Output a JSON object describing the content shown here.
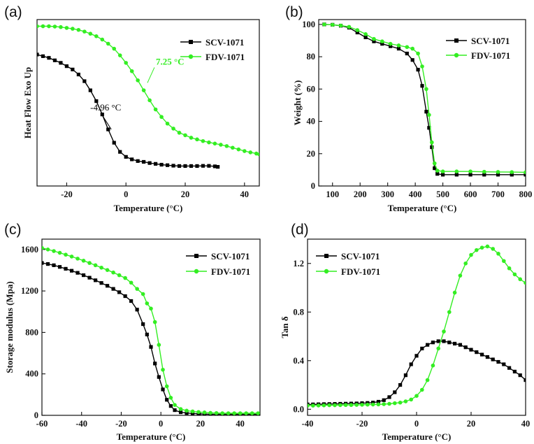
{
  "colors": {
    "scv": "#000000",
    "fdv": "#33ee22"
  },
  "series_names": {
    "scv": "SCV-1071",
    "fdv": "FDV-1071"
  },
  "chart_data": [
    {
      "panel": "(a)",
      "type": "line",
      "title": "",
      "xlabel": "Temperature (°C)",
      "ylabel": "Heat Flow Exo Up",
      "xlim": [
        -30,
        45
      ],
      "ylim": [
        0,
        10
      ],
      "xticks": [
        -20,
        0,
        20,
        40
      ],
      "yticks": [],
      "grid": false,
      "legend": "top-right",
      "series": [
        {
          "name": "SCV-1071",
          "marker": "square",
          "x": [
            -30,
            -28,
            -26,
            -24,
            -22,
            -20,
            -18,
            -16,
            -14,
            -12,
            -10,
            -8,
            -6,
            -4,
            -2,
            0,
            2,
            4,
            6,
            8,
            10,
            12,
            14,
            16,
            18,
            20,
            22,
            24,
            26,
            28,
            30,
            31
          ],
          "y": [
            7.9,
            7.8,
            7.7,
            7.55,
            7.4,
            7.2,
            7.0,
            6.7,
            6.3,
            5.75,
            5.1,
            4.3,
            3.4,
            2.6,
            2.05,
            1.75,
            1.6,
            1.5,
            1.45,
            1.38,
            1.33,
            1.28,
            1.25,
            1.22,
            1.2,
            1.2,
            1.2,
            1.2,
            1.21,
            1.21,
            1.18,
            1.15
          ]
        },
        {
          "name": "FDV-1071",
          "marker": "circle",
          "x": [
            -30,
            -28,
            -26,
            -24,
            -22,
            -20,
            -18,
            -16,
            -14,
            -12,
            -10,
            -8,
            -6,
            -4,
            -2,
            0,
            2,
            4,
            6,
            8,
            10,
            12,
            14,
            16,
            18,
            20,
            22,
            24,
            26,
            28,
            30,
            32,
            34,
            36,
            38,
            40,
            42,
            44,
            45
          ],
          "y": [
            9.6,
            9.6,
            9.6,
            9.58,
            9.55,
            9.5,
            9.45,
            9.38,
            9.28,
            9.15,
            9.0,
            8.8,
            8.55,
            8.25,
            7.85,
            7.4,
            6.9,
            6.35,
            5.75,
            5.15,
            4.6,
            4.15,
            3.75,
            3.45,
            3.2,
            3.05,
            2.9,
            2.8,
            2.7,
            2.62,
            2.55,
            2.48,
            2.4,
            2.3,
            2.2,
            2.1,
            2.02,
            1.95,
            1.9
          ]
        }
      ],
      "annotations": [
        {
          "text": "-4.96 °C",
          "x": -4.96,
          "y": 3.4,
          "color": "black"
        },
        {
          "text": "7.25 °C",
          "x": 7.25,
          "y": 6.2,
          "color": "green"
        }
      ]
    },
    {
      "panel": "(b)",
      "type": "line",
      "title": "",
      "xlabel": "Temperature (°C)",
      "ylabel": "Weight (%)",
      "xlim": [
        50,
        800
      ],
      "ylim": [
        0,
        103
      ],
      "xticks": [
        100,
        200,
        300,
        400,
        500,
        600,
        700,
        800
      ],
      "yticks": [
        0,
        20,
        40,
        60,
        80,
        100
      ],
      "grid": false,
      "legend": "top-right",
      "series": [
        {
          "name": "SCV-1071",
          "marker": "square",
          "x": [
            70,
            100,
            130,
            160,
            190,
            220,
            250,
            280,
            310,
            340,
            370,
            390,
            410,
            425,
            440,
            450,
            460,
            470,
            480,
            500,
            550,
            600,
            650,
            700,
            750,
            800
          ],
          "y": [
            100,
            99.8,
            99.2,
            98,
            95,
            92,
            89.5,
            88,
            86.5,
            85,
            82,
            78,
            72,
            62,
            46,
            36,
            24,
            11,
            7.5,
            7,
            7,
            7,
            7,
            7,
            7,
            7
          ]
        },
        {
          "name": "FDV-1071",
          "marker": "circle",
          "x": [
            70,
            100,
            130,
            160,
            190,
            220,
            250,
            280,
            310,
            340,
            370,
            390,
            410,
            425,
            440,
            450,
            460,
            470,
            480,
            500,
            550,
            600,
            650,
            700,
            750,
            800
          ],
          "y": [
            100,
            99.8,
            99.3,
            98.5,
            96.5,
            94,
            91,
            89.5,
            88,
            87,
            86,
            85,
            82,
            74,
            60,
            44,
            27,
            14,
            9.5,
            9,
            9,
            9,
            8.8,
            8.7,
            8.6,
            8.5
          ]
        }
      ]
    },
    {
      "panel": "(c)",
      "type": "line",
      "title": "",
      "xlabel": "Temperature (°C)",
      "ylabel": "Storage modulus (Mpa)",
      "xlim": [
        -60,
        50
      ],
      "ylim": [
        0,
        1700
      ],
      "xticks": [
        -60,
        -40,
        -20,
        0,
        20,
        40
      ],
      "yticks": [
        0,
        400,
        800,
        1200,
        1600
      ],
      "grid": false,
      "legend": "top-right",
      "series": [
        {
          "name": "SCV-1071",
          "marker": "square",
          "x": [
            -60,
            -57,
            -54,
            -51,
            -48,
            -45,
            -42,
            -39,
            -36,
            -33,
            -30,
            -27,
            -24,
            -21,
            -18,
            -15,
            -12,
            -9,
            -7,
            -5,
            -3,
            -1,
            1,
            3,
            5,
            7,
            10,
            13,
            16,
            19,
            22,
            25,
            28,
            31,
            34,
            37,
            40,
            43,
            46,
            49
          ],
          "y": [
            1470,
            1460,
            1448,
            1432,
            1414,
            1395,
            1375,
            1352,
            1328,
            1303,
            1277,
            1250,
            1220,
            1188,
            1150,
            1103,
            1020,
            880,
            780,
            660,
            500,
            370,
            250,
            150,
            90,
            50,
            30,
            22,
            18,
            15,
            12,
            10,
            10,
            10,
            10,
            10,
            10,
            10,
            10,
            10
          ]
        },
        {
          "name": "FDV-1071",
          "marker": "circle",
          "x": [
            -60,
            -57,
            -54,
            -51,
            -48,
            -45,
            -42,
            -39,
            -36,
            -33,
            -30,
            -27,
            -24,
            -21,
            -18,
            -15,
            -12,
            -9,
            -7,
            -5,
            -3,
            -1,
            1,
            3,
            5,
            7,
            10,
            13,
            16,
            19,
            22,
            25,
            28,
            31,
            34,
            37,
            40,
            43,
            46,
            49
          ],
          "y": [
            1615,
            1600,
            1585,
            1568,
            1550,
            1532,
            1512,
            1492,
            1470,
            1448,
            1425,
            1402,
            1378,
            1352,
            1325,
            1280,
            1220,
            1170,
            1080,
            1030,
            900,
            680,
            440,
            280,
            170,
            100,
            60,
            45,
            38,
            32,
            28,
            24,
            22,
            20,
            20,
            20,
            20,
            20,
            20,
            20
          ]
        }
      ]
    },
    {
      "panel": "(d)",
      "type": "line",
      "title": "",
      "xlabel": "Temperature (°C)",
      "ylabel": "Tan δ",
      "xlim": [
        -40,
        40
      ],
      "ylim": [
        -0.05,
        1.4
      ],
      "xticks": [
        -40,
        -20,
        0,
        20,
        40
      ],
      "yticks": [
        0.0,
        0.4,
        0.8,
        1.2
      ],
      "grid": false,
      "legend": "top-left",
      "series": [
        {
          "name": "SCV-1071",
          "marker": "square",
          "x": [
            -40,
            -38,
            -36,
            -34,
            -32,
            -30,
            -28,
            -26,
            -24,
            -22,
            -20,
            -18,
            -16,
            -14,
            -12,
            -10,
            -8,
            -6,
            -4,
            -2,
            0,
            2,
            4,
            6,
            8,
            10,
            12,
            14,
            16,
            18,
            20,
            22,
            24,
            26,
            28,
            30,
            32,
            34,
            36,
            38,
            40
          ],
          "y": [
            0.04,
            0.04,
            0.041,
            0.042,
            0.043,
            0.044,
            0.045,
            0.046,
            0.047,
            0.048,
            0.05,
            0.052,
            0.055,
            0.062,
            0.075,
            0.1,
            0.14,
            0.2,
            0.28,
            0.37,
            0.44,
            0.5,
            0.53,
            0.55,
            0.56,
            0.56,
            0.55,
            0.54,
            0.53,
            0.51,
            0.49,
            0.47,
            0.45,
            0.43,
            0.41,
            0.39,
            0.37,
            0.34,
            0.31,
            0.28,
            0.24
          ]
        },
        {
          "name": "FDV-1071",
          "marker": "circle",
          "x": [
            -40,
            -38,
            -36,
            -34,
            -32,
            -30,
            -28,
            -26,
            -24,
            -22,
            -20,
            -18,
            -16,
            -14,
            -12,
            -10,
            -8,
            -6,
            -4,
            -2,
            0,
            2,
            4,
            6,
            8,
            10,
            12,
            14,
            16,
            18,
            20,
            22,
            24,
            26,
            28,
            30,
            32,
            34,
            36,
            38,
            40
          ],
          "y": [
            0.03,
            0.03,
            0.031,
            0.032,
            0.033,
            0.033,
            0.034,
            0.035,
            0.035,
            0.036,
            0.037,
            0.038,
            0.039,
            0.04,
            0.042,
            0.045,
            0.05,
            0.055,
            0.065,
            0.08,
            0.11,
            0.16,
            0.24,
            0.36,
            0.5,
            0.64,
            0.8,
            0.96,
            1.1,
            1.2,
            1.27,
            1.31,
            1.33,
            1.34,
            1.32,
            1.28,
            1.22,
            1.16,
            1.11,
            1.07,
            1.04
          ]
        }
      ]
    }
  ]
}
